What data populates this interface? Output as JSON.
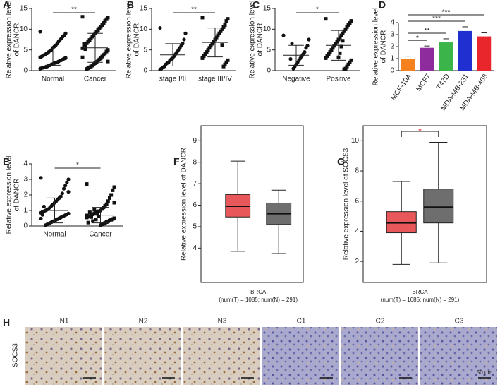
{
  "chart_data": [
    {
      "type": "strip",
      "panel": "A",
      "ylabel": [
        "Relative expression level",
        "of DANCR"
      ],
      "ylim": [
        0,
        15
      ],
      "yticks": [
        0,
        5,
        10,
        15
      ],
      "markers": [
        "circle",
        "square"
      ],
      "groups": [
        {
          "name": "Normal",
          "mean": 3.5,
          "sd": 2.2,
          "values": [
            9.4,
            9.0,
            8.5,
            8.2,
            7.8,
            7.4,
            7.0,
            6.5,
            6.1,
            5.8,
            5.5,
            5.0,
            4.8,
            4.5,
            4.2,
            4.0,
            3.8,
            3.6,
            3.4,
            3.2,
            3.0,
            2.9,
            2.7,
            2.5,
            2.4,
            2.2,
            2.0,
            1.9,
            1.8,
            1.6,
            1.5,
            1.3,
            1.2,
            1.0,
            0.9,
            0.8,
            0.7,
            0.6,
            0.5,
            3.1
          ]
        },
        {
          "name": "Cancer",
          "mean": 5.5,
          "sd": 3.5,
          "values": [
            13,
            12.8,
            12.4,
            12,
            11.5,
            11,
            10.6,
            10.2,
            9.8,
            9.4,
            9,
            8.6,
            8.2,
            7.8,
            7.4,
            7,
            6.6,
            6.2,
            5.8,
            5.4,
            5,
            4.6,
            4.2,
            3.8,
            3.4,
            3,
            2.7,
            2.4,
            2.1,
            1.8,
            1.5,
            1.2,
            1,
            0.8,
            0.6,
            0.4,
            5.2,
            6.4,
            3.2,
            2.2
          ]
        }
      ],
      "significance": {
        "label": "**"
      }
    },
    {
      "type": "strip",
      "panel": "B",
      "ylabel": [
        "Relative expression level",
        "of DANCR"
      ],
      "ylim": [
        0,
        15
      ],
      "yticks": [
        0,
        5,
        10,
        15
      ],
      "markers": [
        "circle",
        "square"
      ],
      "groups": [
        {
          "name": "stage I/II",
          "mean": 3.8,
          "sd": 2.7,
          "values": [
            10.3,
            9,
            7.5,
            6.5,
            6,
            5.5,
            5,
            4.5,
            4,
            3.5,
            3,
            2.8,
            2.5,
            2,
            1.8,
            1.5,
            1,
            0.8,
            0.5,
            0.3
          ]
        },
        {
          "name": "stage III/IV",
          "mean": 6.8,
          "sd": 3.5,
          "values": [
            12.8,
            12.5,
            12,
            11,
            10.5,
            10,
            9.5,
            9,
            8.5,
            8,
            7.5,
            7,
            6.5,
            6,
            5.5,
            5,
            4.5,
            4,
            3.5,
            3,
            2.5,
            2,
            1.5,
            1,
            6.2
          ]
        }
      ],
      "significance": {
        "label": "**"
      }
    },
    {
      "type": "strip",
      "panel": "C",
      "ylabel": [
        "Relative expression level",
        "of DANCR"
      ],
      "ylim": [
        0,
        15
      ],
      "yticks": [
        0,
        5,
        10,
        15
      ],
      "markers": [
        "circle",
        "square"
      ],
      "groups": [
        {
          "name": "Negative",
          "mean": 3.7,
          "sd": 2.4,
          "values": [
            8.5,
            7.5,
            6,
            5.5,
            4.5,
            4,
            3.5,
            3,
            2.5,
            2,
            1.5,
            1,
            0.5,
            6.5,
            2.8
          ]
        },
        {
          "name": "Positive",
          "mean": 6.1,
          "sd": 3.6,
          "values": [
            12.5,
            12,
            11.5,
            11,
            10.5,
            10,
            9.5,
            9,
            8.5,
            8,
            7.5,
            7,
            6.5,
            6,
            5.5,
            5,
            4.5,
            4,
            3.5,
            3,
            2.5,
            2,
            1.5,
            1,
            0.5,
            0.3,
            7.2,
            5.8,
            4.2,
            3.2
          ]
        }
      ],
      "significance": {
        "label": "*"
      }
    },
    {
      "type": "bar",
      "panel": "D",
      "ylabel": [
        "Relative expression level",
        "of DANCR"
      ],
      "ylim": [
        0,
        4
      ],
      "yticks": [
        0,
        1,
        2,
        3,
        4
      ],
      "categories": [
        "MCF-10A",
        "MCF7",
        "T47D",
        "MDA-MB-231",
        "MDA-MB-468"
      ],
      "values": [
        1.0,
        1.9,
        2.35,
        3.3,
        2.85
      ],
      "errors": [
        0.2,
        0.15,
        0.3,
        0.35,
        0.3
      ],
      "colors": [
        "#f5821f",
        "#8e2c9e",
        "#3bb44a",
        "#1f2fd0",
        "#e8262b"
      ],
      "comparisons": [
        {
          "groups": [
            "MCF-10A",
            "MCF7"
          ],
          "label": "*"
        },
        {
          "groups": [
            "MCF-10A",
            "T47D"
          ],
          "label": "**"
        },
        {
          "groups": [
            "MCF-10A",
            "MDA-MB-231"
          ],
          "label": "***"
        },
        {
          "groups": [
            "MCF-10A",
            "MDA-MB-468"
          ],
          "label": "***"
        }
      ]
    },
    {
      "type": "strip",
      "panel": "E",
      "ylabel": [
        "Relative expression level",
        "of DANCR"
      ],
      "ylim": [
        0,
        4
      ],
      "yticks": [
        0,
        1,
        2,
        3,
        4
      ],
      "markers": [
        "circle",
        "square"
      ],
      "groups": [
        {
          "name": "Normal",
          "mean": 1.0,
          "sd": 0.8,
          "values": [
            3.1,
            3.0,
            2.8,
            2.6,
            2.4,
            2.1,
            1.9,
            1.8,
            1.7,
            1.6,
            1.5,
            1.4,
            1.3,
            1.2,
            1.1,
            1.05,
            1.0,
            0.95,
            0.9,
            0.85,
            0.8,
            0.75,
            0.7,
            0.65,
            0.6,
            0.55,
            0.5,
            0.45,
            0.4,
            0.35,
            0.3,
            0.25,
            0.2,
            0.15,
            0.1,
            0.05,
            1.25,
            0.72,
            0.48,
            2.2
          ]
        },
        {
          "name": "Cancer",
          "mean": 0.7,
          "sd": 0.5,
          "values": [
            2.7,
            2.5,
            2.3,
            2.0,
            1.8,
            1.6,
            1.4,
            1.3,
            1.2,
            1.1,
            1.0,
            0.95,
            0.9,
            0.85,
            0.8,
            0.75,
            0.7,
            0.65,
            0.6,
            0.55,
            0.5,
            0.45,
            0.4,
            0.35,
            0.3,
            0.25,
            0.2,
            0.15,
            0.1,
            0.05,
            0.62,
            0.78,
            0.42,
            1.05,
            0.32,
            0.58,
            0.88,
            0.22,
            0.68,
            1.5
          ]
        }
      ],
      "significance": {
        "label": "*"
      }
    },
    {
      "type": "box",
      "panel": "F",
      "ylabel": "Relative expression level of DANCR",
      "ylim": [
        2.4,
        9.7
      ],
      "yticks": [
        4,
        5,
        6,
        7,
        8,
        9
      ],
      "xlabel": "BRCA",
      "xsublabel": "(num(T) = 1085; num(N) = 291)",
      "boxes": [
        {
          "color": "#e8585a",
          "whisker_low": 3.85,
          "q1": 5.45,
          "median": 5.95,
          "q3": 6.5,
          "whisker_high": 8.05
        },
        {
          "color": "#6e6e6e",
          "whisker_low": 3.75,
          "q1": 5.1,
          "median": 5.6,
          "q3": 6.1,
          "whisker_high": 6.7
        }
      ]
    },
    {
      "type": "box",
      "panel": "G",
      "ylabel": "Relative expression level of SOCS3",
      "ylim": [
        0.6,
        11
      ],
      "yticks": [
        2,
        4,
        6,
        8,
        10
      ],
      "xlabel": "BRCA",
      "xsublabel": "(num(T) = 1085; num(N) = 291)",
      "boxes": [
        {
          "color": "#e8585a",
          "whisker_low": 1.8,
          "q1": 3.9,
          "median": 4.55,
          "q3": 5.3,
          "whisker_high": 7.3
        },
        {
          "color": "#6e6e6e",
          "whisker_low": 1.9,
          "q1": 4.55,
          "median": 5.6,
          "q3": 6.8,
          "whisker_high": 9.9
        }
      ],
      "significance": {
        "label": "*",
        "color": "#e8312f"
      }
    }
  ],
  "image_panel": {
    "panel": "H",
    "row_label": "SOCS3",
    "labels": [
      "N1",
      "N2",
      "N3",
      "C1",
      "C2",
      "C3"
    ],
    "scale_bar": "50 μm"
  }
}
